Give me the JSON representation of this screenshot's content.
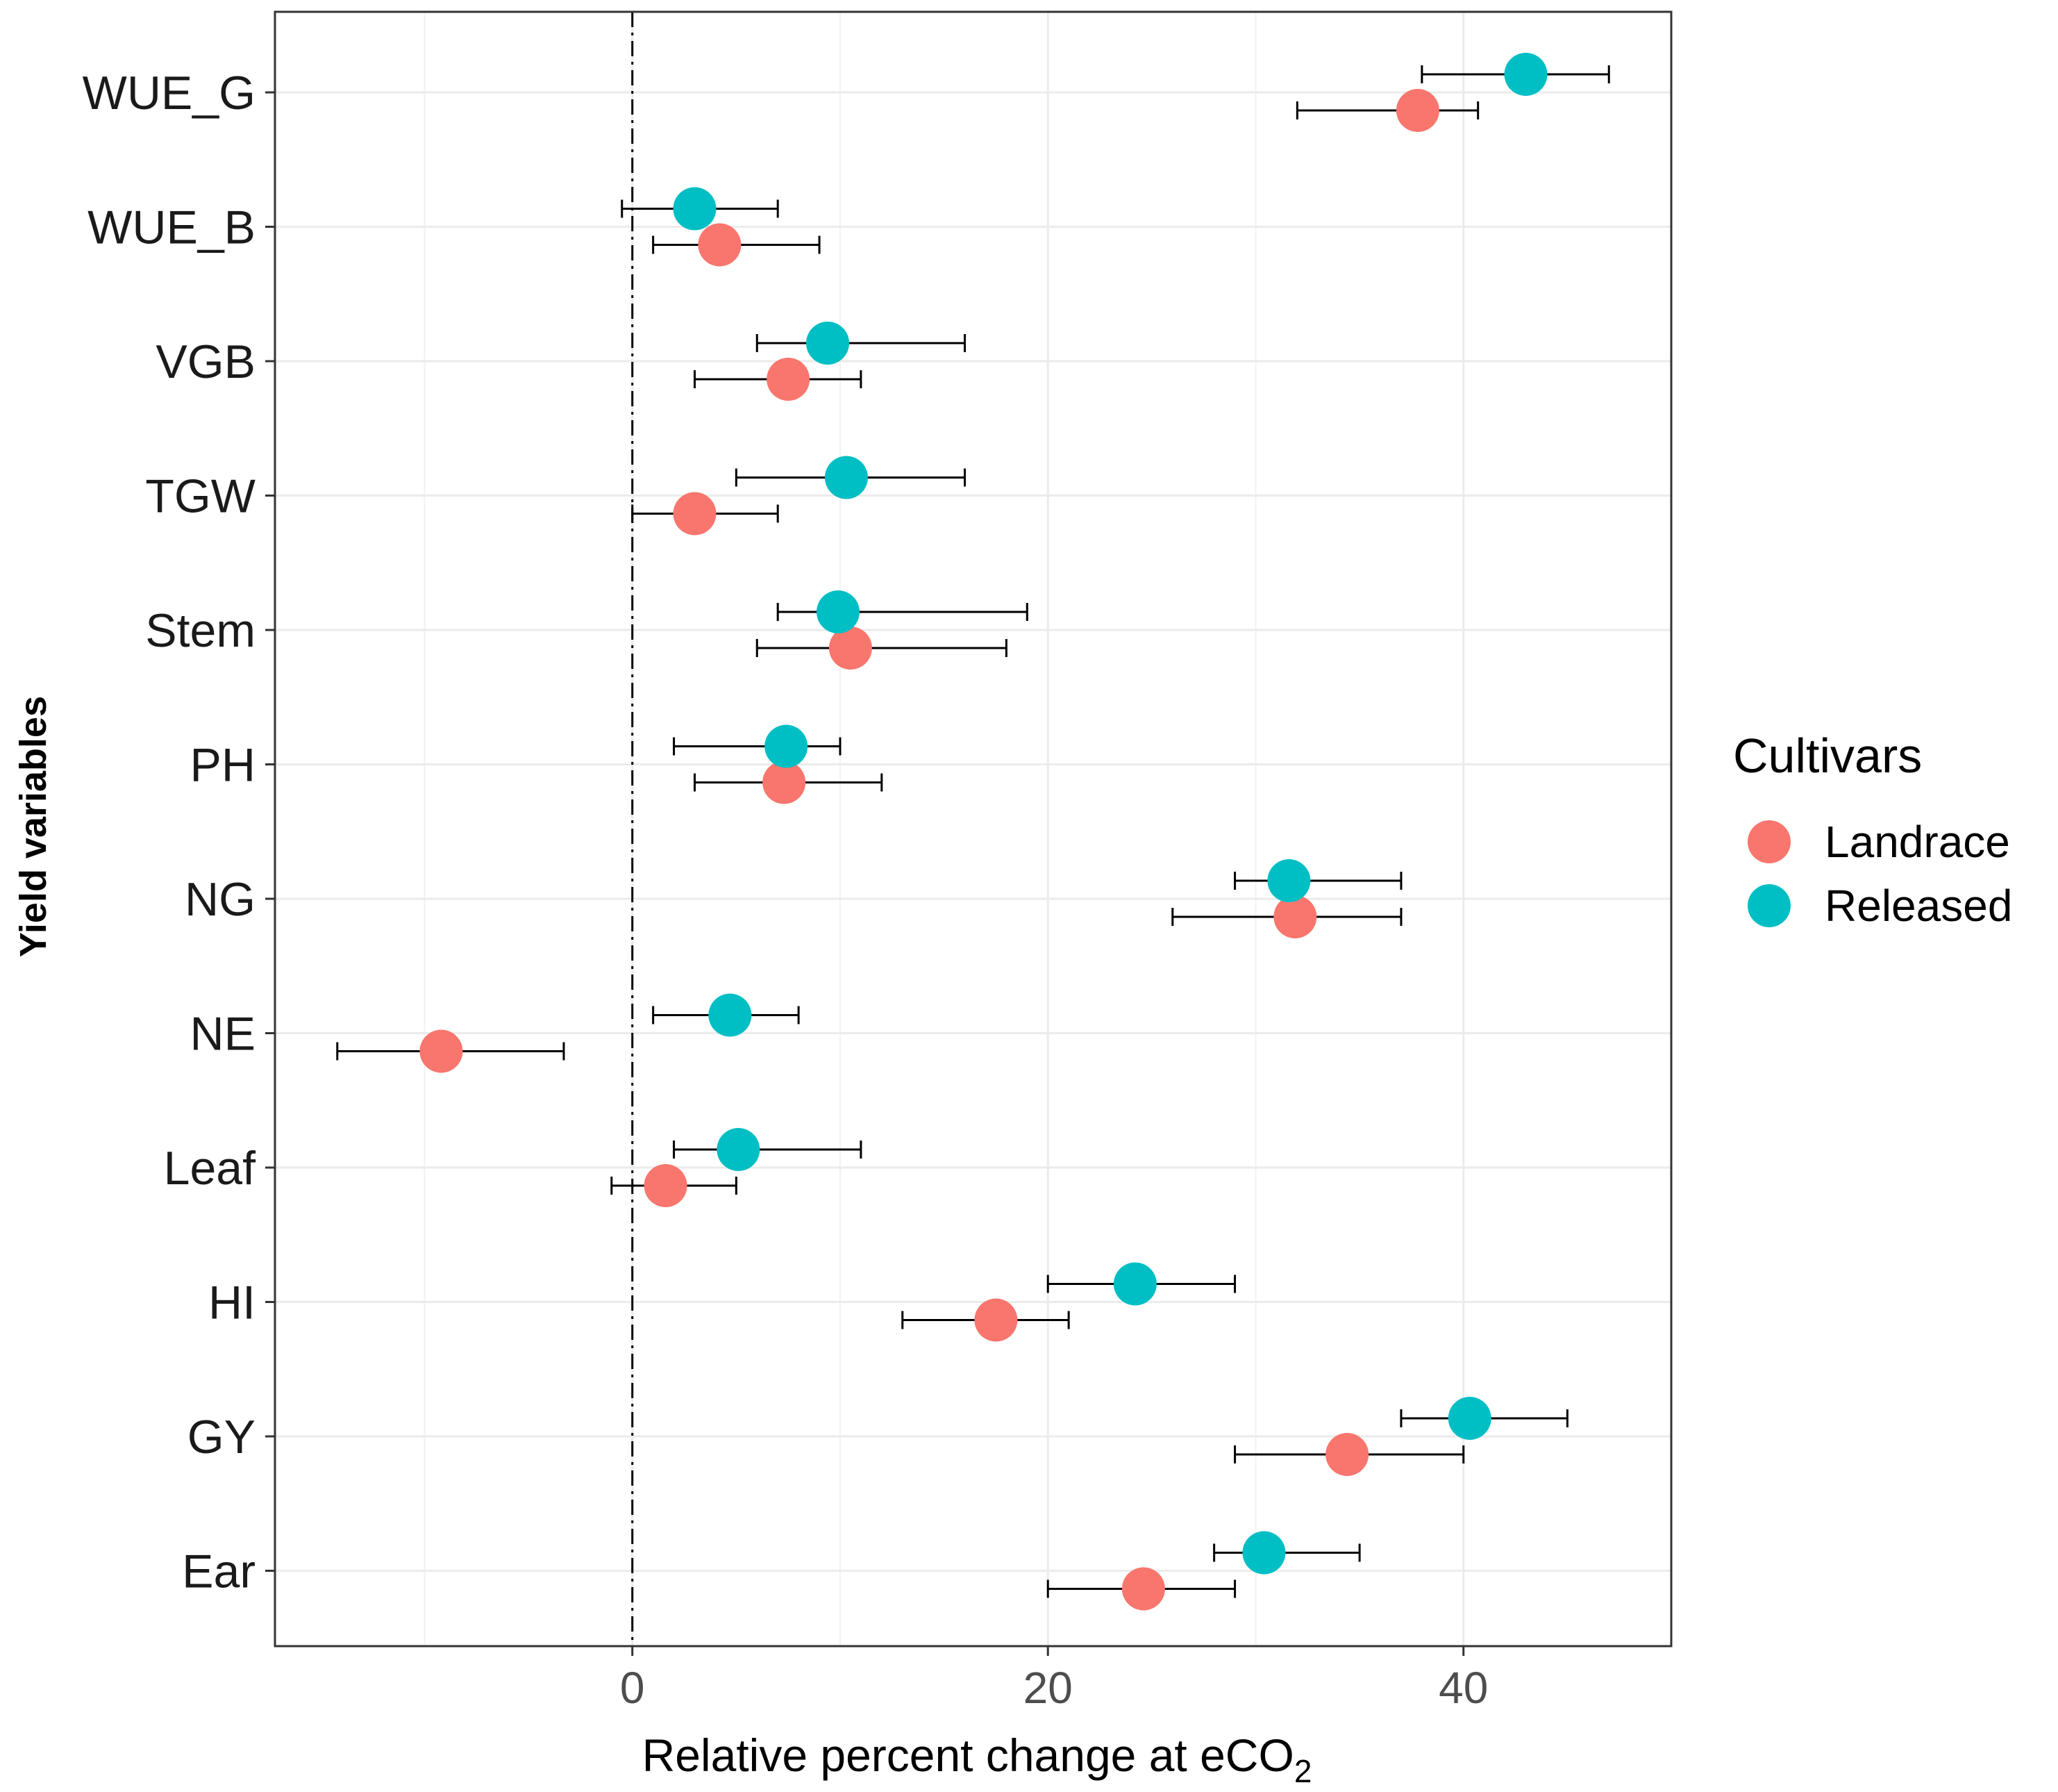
{
  "chart_data": {
    "type": "scatter",
    "title": "",
    "xlabel": "Relative percent change at eCO",
    "xlabel_subscript": "2",
    "ylabel": "Yield variables",
    "xlim": [
      -17.2,
      50
    ],
    "xticks": [
      0,
      20,
      40
    ],
    "xtick_labels": [
      "0",
      "20",
      "40"
    ],
    "reference_line_x": 0,
    "grid": true,
    "legend_title": "Cultivars",
    "legend_placement": "right",
    "categories": [
      "WUE_G",
      "WUE_B",
      "VGB",
      "TGW",
      "Stem",
      "PH",
      "NG",
      "NE",
      "Leaf",
      "HI",
      "GY",
      "Ear"
    ],
    "series": [
      {
        "name": "Landrace",
        "color": "#F8766D",
        "values": [
          37.8,
          4.2,
          7.5,
          3.0,
          10.5,
          7.3,
          31.9,
          -9.2,
          1.6,
          17.5,
          34.4,
          24.6
        ],
        "ci_low": [
          32.0,
          1.0,
          3.0,
          0.0,
          6.0,
          3.0,
          26.0,
          -14.2,
          -1.0,
          13.0,
          29.0,
          20.0
        ],
        "ci_high": [
          40.7,
          9.0,
          11.0,
          7.0,
          18.0,
          12.0,
          37.0,
          -3.3,
          5.0,
          21.0,
          40.0,
          29.0
        ]
      },
      {
        "name": "Released",
        "color": "#00BFC4",
        "values": [
          43.0,
          3.0,
          9.4,
          10.3,
          9.9,
          7.4,
          31.6,
          4.7,
          5.1,
          24.2,
          40.3,
          30.4
        ],
        "ci_low": [
          38.0,
          -0.5,
          6.0,
          5.0,
          7.0,
          2.0,
          29.0,
          1.0,
          2.0,
          20.0,
          37.0,
          28.0
        ],
        "ci_high": [
          47.0,
          7.0,
          16.0,
          16.0,
          19.0,
          10.0,
          37.0,
          8.0,
          11.0,
          29.0,
          45.0,
          35.0
        ]
      }
    ]
  }
}
